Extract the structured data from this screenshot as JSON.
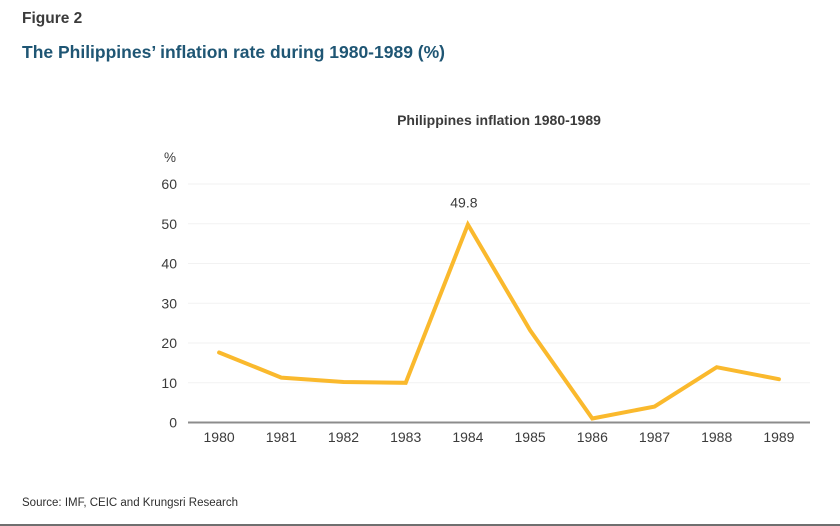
{
  "header": {
    "figure_label": "Figure 2",
    "title": "The Philippines’ inflation rate during 1980-1989 (%)"
  },
  "footer": {
    "source": "Source: IMF, CEIC and Krungsri Research"
  },
  "colors": {
    "line": "#FAB92D",
    "title_blue": "#1F5674",
    "text_dark": "#3B3B3B",
    "axis": "#8C8C8C",
    "grid": "#F2F2F2"
  },
  "chart_data": {
    "type": "line",
    "title": "Philippines inflation 1980-1989",
    "ylabel": "%",
    "xlabel": "",
    "categories": [
      "1980",
      "1981",
      "1982",
      "1983",
      "1984",
      "1985",
      "1986",
      "1987",
      "1988",
      "1989"
    ],
    "values": [
      17.6,
      11.3,
      10.2,
      10.0,
      49.8,
      23.2,
      1.0,
      4.0,
      13.9,
      10.9
    ],
    "yticks": [
      0,
      10,
      20,
      30,
      40,
      50,
      60
    ],
    "ylim": [
      0,
      60
    ],
    "grid": true,
    "legend": false,
    "annotations": [
      {
        "category": "1984",
        "label": "49.8"
      }
    ]
  }
}
